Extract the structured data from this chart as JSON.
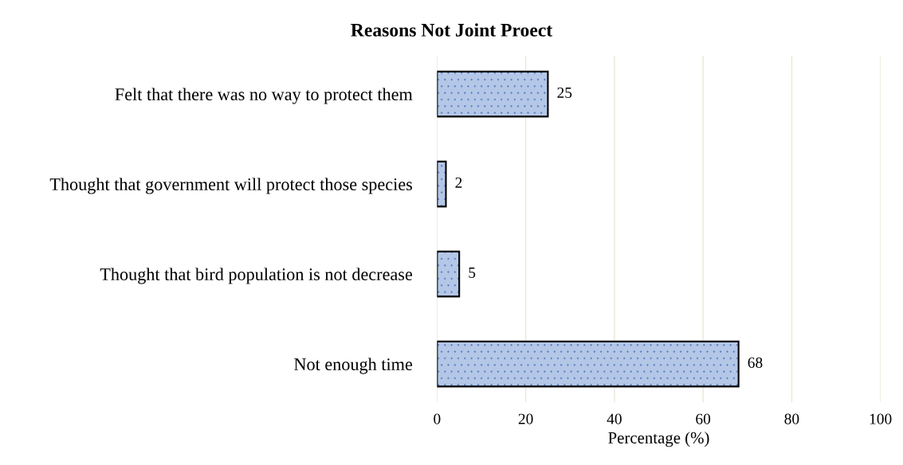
{
  "chart_data": {
    "type": "bar",
    "orientation": "horizontal",
    "title": "Reasons Not Joint Proect",
    "xlabel": "Percentage (%)",
    "categories": [
      "Felt that there was no way to protect them",
      "Thought that government will protect those species",
      "Thought that bird population is not decrease",
      "Not enough time"
    ],
    "values": [
      25,
      2,
      5,
      68
    ],
    "color": "#b4c7e7",
    "xlim": [
      0,
      100
    ],
    "xticks": [
      0,
      20,
      40,
      60,
      80,
      100
    ],
    "grid": "x",
    "data_labels": true
  }
}
